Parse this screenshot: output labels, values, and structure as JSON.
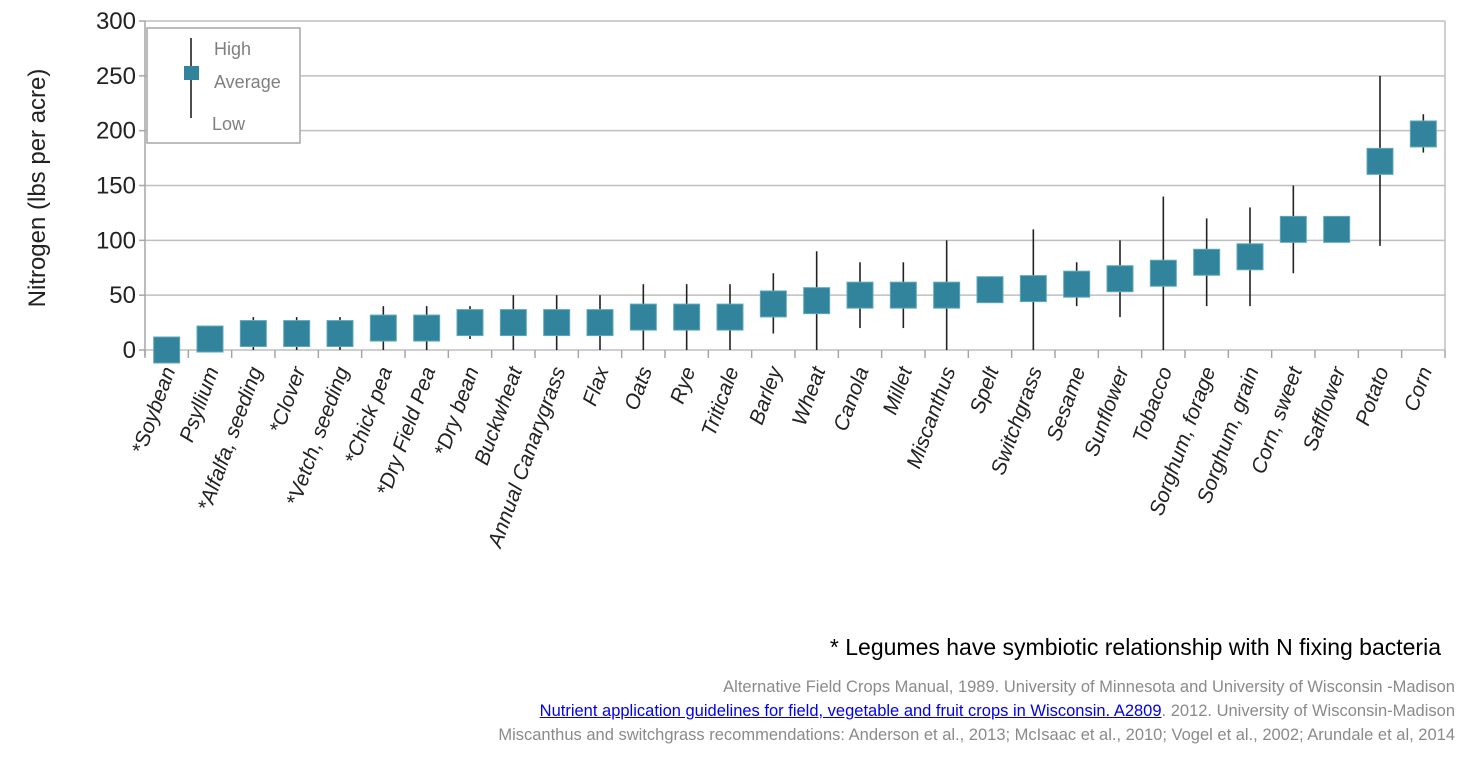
{
  "chart_data": {
    "type": "box-range",
    "title": "",
    "ylabel": "Nitrogen (lbs per acre)",
    "xlabel": "",
    "ylim": [
      0,
      300
    ],
    "yticks": [
      0,
      50,
      100,
      150,
      200,
      250,
      300
    ],
    "grid": true,
    "legend": {
      "placement": "top-left",
      "entries": [
        "High",
        "Average",
        "Low"
      ]
    },
    "categories": [
      "*Soybean",
      "Psyllium",
      "*Alfalfa, seeding",
      "*Clover",
      "*Vetch, seeding",
      "*Chick pea",
      "*Dry Field Pea",
      "*Dry bean",
      "Buckwheat",
      "Annual Canarygrass",
      "Flax",
      "Oats",
      "Rye",
      "Triticale",
      "Barley",
      "Wheat",
      "Canola",
      "Millet",
      "Miscanthus",
      "Spelt",
      "Switchgrass",
      "Sesame",
      "Sunflower",
      "Tobacco",
      "Sorghum, forage",
      "Sorghum, grain",
      "Corn, sweet",
      "Safflower",
      "Potato",
      "Corn"
    ],
    "average": [
      0,
      10,
      15,
      15,
      15,
      20,
      20,
      25,
      25,
      25,
      25,
      30,
      30,
      30,
      42,
      45,
      50,
      50,
      50,
      55,
      56,
      60,
      65,
      70,
      80,
      85,
      110,
      110,
      172,
      197
    ],
    "high": [
      null,
      null,
      30,
      30,
      30,
      40,
      40,
      40,
      50,
      50,
      50,
      60,
      60,
      60,
      70,
      90,
      80,
      80,
      100,
      null,
      110,
      80,
      100,
      140,
      120,
      130,
      150,
      null,
      250,
      215
    ],
    "low": [
      null,
      null,
      0,
      0,
      0,
      0,
      0,
      10,
      0,
      0,
      0,
      0,
      0,
      0,
      15,
      0,
      20,
      20,
      0,
      null,
      0,
      40,
      30,
      0,
      40,
      40,
      70,
      null,
      95,
      180
    ],
    "color": "#31849b"
  },
  "footnote": "* Legumes have symbiotic relationship with N fixing bacteria",
  "sources": {
    "line1": "Alternative Field Crops Manual, 1989.  University of Minnesota and University of Wisconsin -Madison",
    "line2_link": "Nutrient application guidelines for field, vegetable and fruit crops in Wisconsin. A2809",
    "line2_rest": ". 2012. University of Wisconsin-Madison",
    "line3": "Miscanthus and switchgrass recommendations: Anderson et al., 2013; McIsaac et al., 2010; Vogel et al., 2002; Arundale et al, 2014"
  }
}
